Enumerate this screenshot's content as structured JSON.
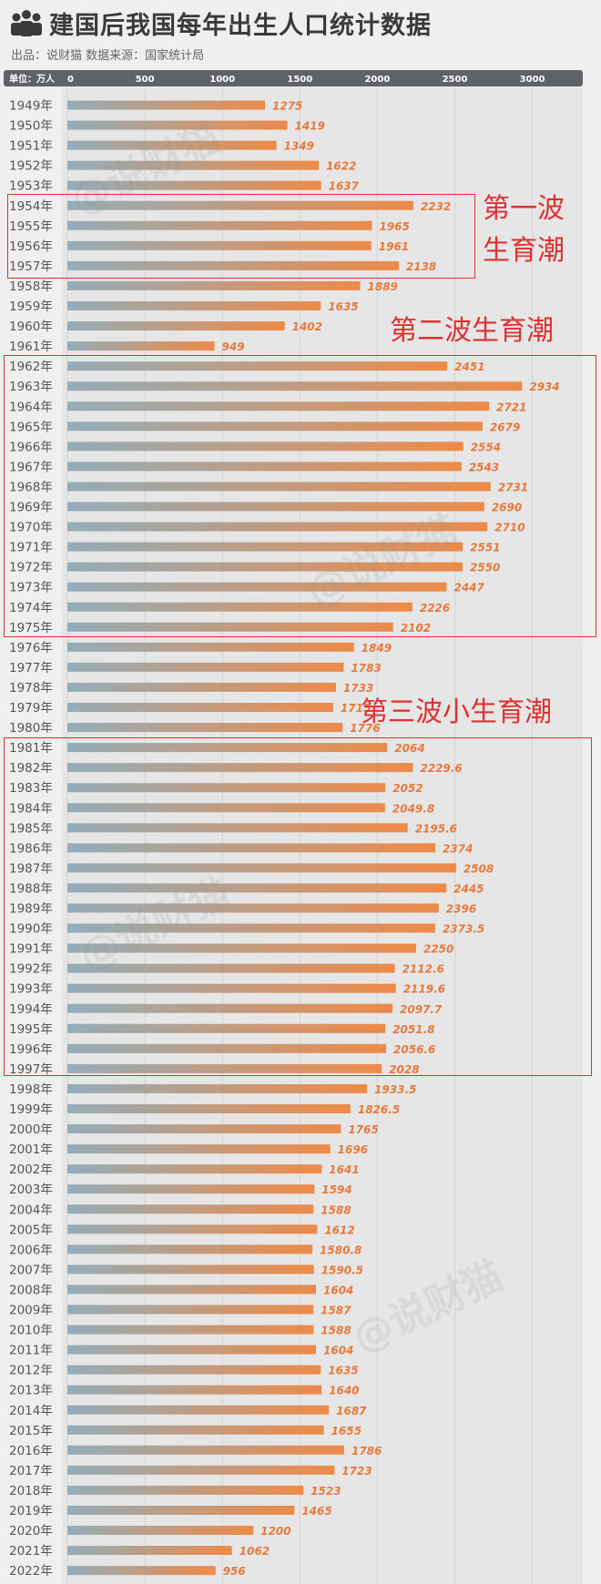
{
  "header": {
    "title": "建国后我国每年出生人口统计数据",
    "subtitle": "出品：说财猫   数据来源：国家统计局"
  },
  "watermark": "@说财猫",
  "annotations": {
    "wave1_line1": "第一波",
    "wave1_line2": "生育潮",
    "wave2": "第二波生育潮",
    "wave3": "第三波小生育潮"
  },
  "chart_data": {
    "type": "bar",
    "orientation": "horizontal",
    "unit_label": "单位：万人",
    "ticks": [
      "0",
      "500",
      "1000",
      "1500",
      "2000",
      "2500",
      "3000"
    ],
    "xlim": [
      0,
      3000
    ],
    "categories": [
      "1949年",
      "1950年",
      "1951年",
      "1952年",
      "1953年",
      "1954年",
      "1955年",
      "1956年",
      "1957年",
      "1958年",
      "1959年",
      "1960年",
      "1961年",
      "1962年",
      "1963年",
      "1964年",
      "1965年",
      "1966年",
      "1967年",
      "1968年",
      "1969年",
      "1970年",
      "1971年",
      "1972年",
      "1973年",
      "1974年",
      "1975年",
      "1976年",
      "1977年",
      "1978年",
      "1979年",
      "1980年",
      "1981年",
      "1982年",
      "1983年",
      "1984年",
      "1985年",
      "1986年",
      "1987年",
      "1988年",
      "1989年",
      "1990年",
      "1991年",
      "1992年",
      "1993年",
      "1994年",
      "1995年",
      "1996年",
      "1997年",
      "1998年",
      "1999年",
      "2000年",
      "2001年",
      "2002年",
      "2003年",
      "2004年",
      "2005年",
      "2006年",
      "2007年",
      "2008年",
      "2009年",
      "2010年",
      "2011年",
      "2012年",
      "2013年",
      "2014年",
      "2015年",
      "2016年",
      "2017年",
      "2018年",
      "2019年",
      "2020年",
      "2021年",
      "2022年"
    ],
    "values": [
      1275,
      1419,
      1349,
      1622,
      1637,
      2232,
      1965,
      1961,
      2138,
      1889,
      1635,
      1402,
      949,
      2451,
      2934,
      2721,
      2679,
      2554,
      2543,
      2731,
      2690,
      2710,
      2551,
      2550,
      2447,
      2226,
      2102,
      1849,
      1783,
      1733,
      1715,
      1776,
      2064,
      2229.6,
      2052,
      2049.8,
      2195.6,
      2374,
      2508,
      2445,
      2396,
      2373.5,
      2250,
      2112.6,
      2119.6,
      2097.7,
      2051.8,
      2056.6,
      2028,
      1933.5,
      1826.5,
      1765,
      1696,
      1641,
      1594,
      1588,
      1612,
      1580.8,
      1590.5,
      1604,
      1587,
      1588,
      1604,
      1635,
      1640,
      1687,
      1655,
      1786,
      1723,
      1523,
      1465,
      1200,
      1062,
      956
    ],
    "value_labels": [
      "1275",
      "1419",
      "1349",
      "1622",
      "1637",
      "2232",
      "1965",
      "1961",
      "2138",
      "1889",
      "1635",
      "1402",
      "949",
      "2451",
      "2934",
      "2721",
      "2679",
      "2554",
      "2543",
      "2731",
      "2690",
      "2710",
      "2551",
      "2550",
      "2447",
      "2226",
      "2102",
      "1849",
      "1783",
      "1733",
      "1715",
      "1776",
      "2064",
      "2229.6",
      "2052",
      "2049.8",
      "2195.6",
      "2374",
      "2508",
      "2445",
      "2396",
      "2373.5",
      "2250",
      "2112.6",
      "2119.6",
      "2097.7",
      "2051.8",
      "2056.6",
      "2028",
      "1933.5",
      "1826.5",
      "1765",
      "1696",
      "1641",
      "1594",
      "1588",
      "1612",
      "1580.8",
      "1590.5",
      "1604",
      "1587",
      "1588",
      "1604",
      "1635",
      "1640",
      "1687",
      "1655",
      "1786",
      "1723",
      "1523",
      "1465",
      "1200",
      "1062",
      "956"
    ],
    "colors": {
      "bar_start": "#93adb9",
      "bar_end": "#ee8a48",
      "label": "#e8793a",
      "axis_bar": "#5f6368",
      "annotation": "#e03030"
    }
  }
}
